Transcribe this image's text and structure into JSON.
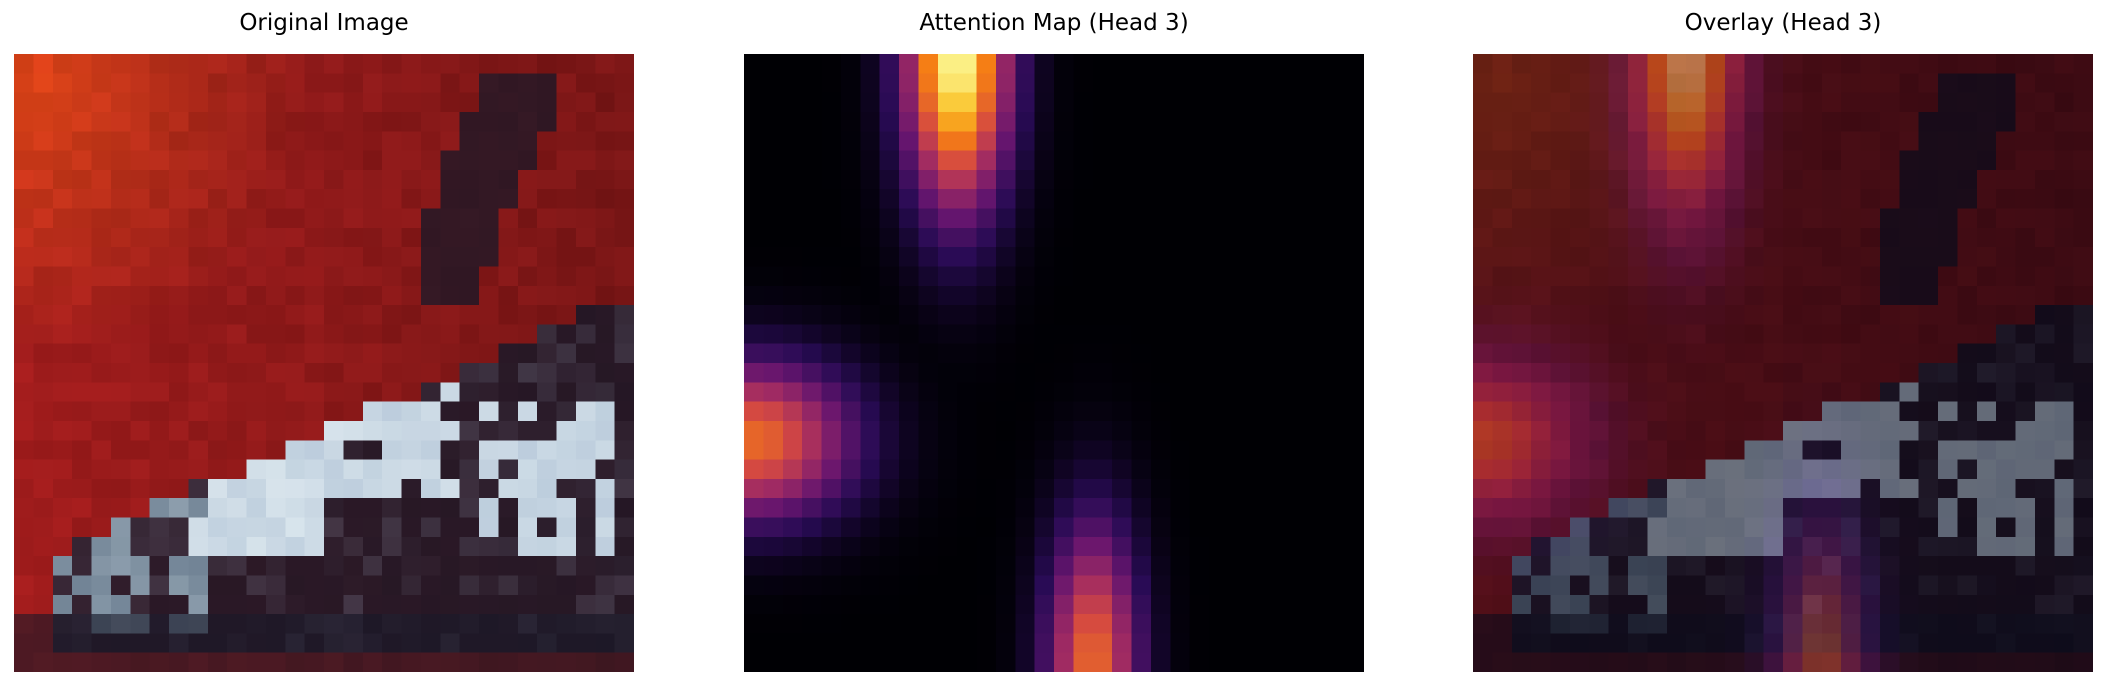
{
  "panels": [
    {
      "title": "Original Image"
    },
    {
      "title": "Attention Map (Head 3)"
    },
    {
      "title": "Overlay (Head 3)"
    }
  ],
  "figure": {
    "colormap": "inferno",
    "grid_resolution": 32,
    "background": "#ffffff",
    "attention_blobs": [
      {
        "region": "top-center",
        "peak_color": "#f8f48a"
      },
      {
        "region": "left-middle",
        "peak_color": "#c8404e"
      },
      {
        "region": "bottom-center",
        "peak_color": "#c8404e"
      }
    ],
    "image_palette": {
      "background_red": "#a01c1c",
      "background_orange": "#e84a18",
      "car_white": "#d8e4ec",
      "car_shadow": "#181828"
    }
  }
}
